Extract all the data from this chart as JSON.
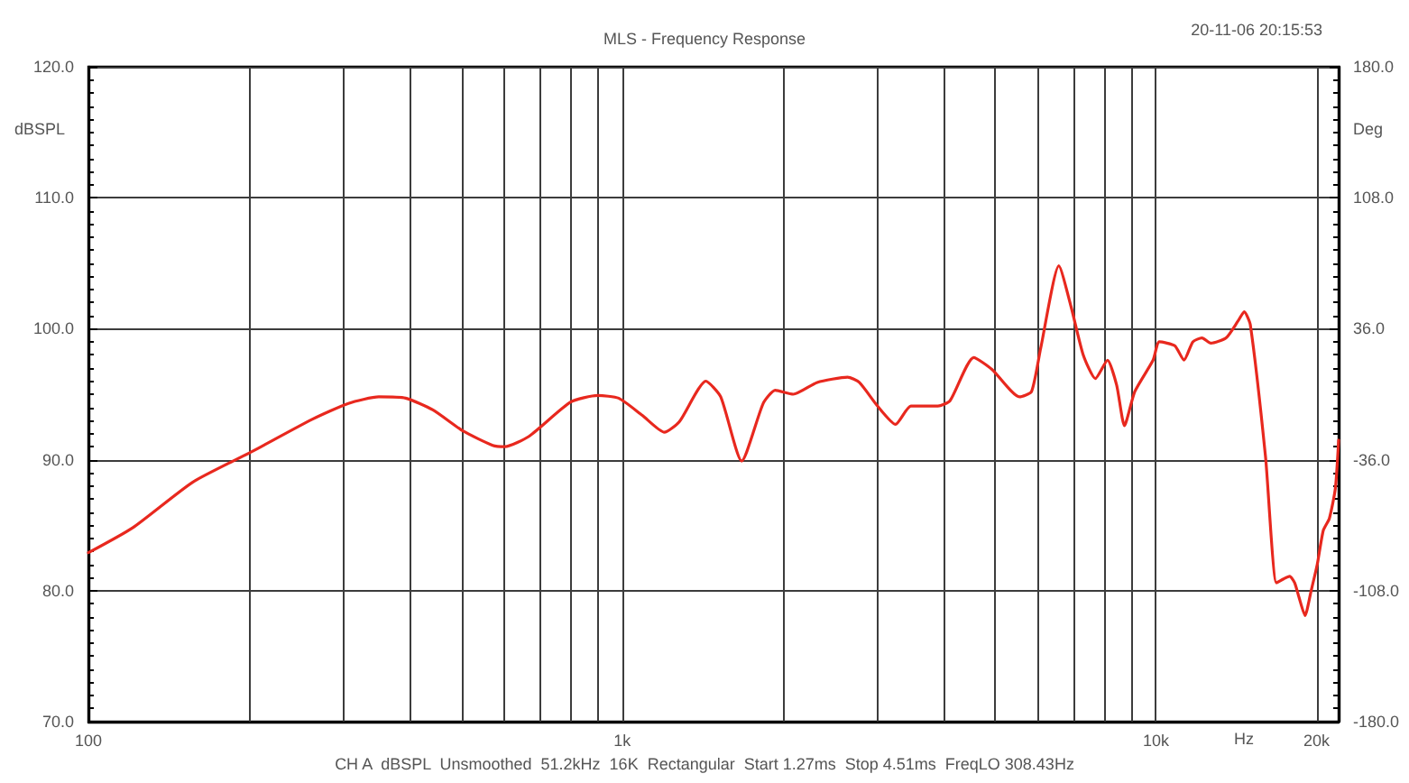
{
  "chart_data": {
    "type": "line",
    "title": "MLS - Frequency Response",
    "xlabel": "Hz",
    "ylabel": "dBSPL",
    "y2label": "Deg",
    "annotations": [
      "20-11-06 20:15:53",
      "CH A  dBSPL  Unsmoothed  51.2kHz  16K  Rectangular  Start 1.27ms  Stop 4.51ms  FreqLO 308.43Hz"
    ],
    "log": "x",
    "grid": true,
    "xlim": [
      100,
      22000
    ],
    "xticks": [
      {
        "value": 100,
        "label": "100"
      },
      {
        "value": 200,
        "label": null
      },
      {
        "value": 300,
        "label": null
      },
      {
        "value": 400,
        "label": null
      },
      {
        "value": 500,
        "label": null
      },
      {
        "value": 600,
        "label": null
      },
      {
        "value": 700,
        "label": null
      },
      {
        "value": 800,
        "label": null
      },
      {
        "value": 900,
        "label": null
      },
      {
        "value": 1000,
        "label": "1k"
      },
      {
        "value": 2000,
        "label": null
      },
      {
        "value": 3000,
        "label": null
      },
      {
        "value": 4000,
        "label": null
      },
      {
        "value": 5000,
        "label": null
      },
      {
        "value": 6000,
        "label": null
      },
      {
        "value": 7000,
        "label": null
      },
      {
        "value": 8000,
        "label": null
      },
      {
        "value": 9000,
        "label": null
      },
      {
        "value": 10000,
        "label": "10k"
      },
      {
        "value": 20000,
        "label": "20k"
      }
    ],
    "ylim": [
      70,
      120
    ],
    "yticks": [
      {
        "value": 70,
        "label": "70.0"
      },
      {
        "value": 80,
        "label": "80.0"
      },
      {
        "value": 90,
        "label": "90.0"
      },
      {
        "value": 100,
        "label": "100.0"
      },
      {
        "value": 110,
        "label": "110.0"
      },
      {
        "value": 120,
        "label": "120.0"
      }
    ],
    "y2lim": [
      -180,
      180
    ],
    "y2ticks": [
      {
        "value": -180,
        "label": "-180.0"
      },
      {
        "value": -108,
        "label": "-108.0"
      },
      {
        "value": -36,
        "label": "-36.0"
      },
      {
        "value": 36,
        "label": "36.0"
      },
      {
        "value": 108,
        "label": "108.0"
      },
      {
        "value": 180,
        "label": "180.0"
      }
    ],
    "series": [
      {
        "color": "#e8281e",
        "x": [
          100,
          121,
          157,
          202,
          263,
          307,
          350,
          393,
          442,
          503,
          572,
          603,
          670,
          801,
          900,
          985,
          1090,
          1200,
          1280,
          1435,
          1530,
          1675,
          1838,
          1936,
          2092,
          2320,
          2645,
          2782,
          3009,
          3253,
          3475,
          3905,
          4114,
          4557,
          4930,
          5550,
          5847,
          6083,
          6580,
          6934,
          7310,
          7703,
          8118,
          8443,
          8733,
          9130,
          9880,
          10150,
          10850,
          11290,
          11730,
          12200,
          12680,
          13540,
          14260,
          14640,
          15030,
          16050,
          16820,
          17350,
          17810,
          18200,
          18540,
          19030,
          19540,
          20060,
          20590,
          21130,
          21690,
          22000
        ],
        "values": [
          82.9,
          84.8,
          88.3,
          90.6,
          93.1,
          94.3,
          94.8,
          94.7,
          93.8,
          92.2,
          91.1,
          91.0,
          91.8,
          94.4,
          94.9,
          94.7,
          93.4,
          92.1,
          92.9,
          96.0,
          94.8,
          89.9,
          94.3,
          95.3,
          95.0,
          95.9,
          96.3,
          95.9,
          94.1,
          92.7,
          94.1,
          94.1,
          94.5,
          97.8,
          96.9,
          94.8,
          95.2,
          98.5,
          104.8,
          101.7,
          98.0,
          96.2,
          97.6,
          95.7,
          92.6,
          95.2,
          97.6,
          99.0,
          98.7,
          97.6,
          99.0,
          99.3,
          98.9,
          99.3,
          100.6,
          101.3,
          100.3,
          90.2,
          80.6,
          80.9,
          81.1,
          80.6,
          79.5,
          78.1,
          80.0,
          82.0,
          84.6,
          85.5,
          87.8,
          91.5
        ]
      }
    ]
  }
}
